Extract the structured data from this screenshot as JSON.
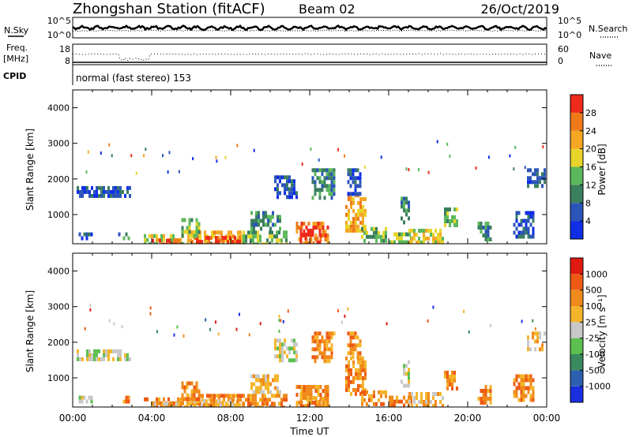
{
  "header": {
    "station": "Zhongshan Station (fitACF)",
    "beam": "Beam 02",
    "date": "26/Oct/2019"
  },
  "noise_panel": {
    "left_label": "N.Sky",
    "left_ticks": [
      "10^5",
      "10^0"
    ],
    "right_label": "N.Search",
    "right_ticks": [
      "10^5",
      "10^0"
    ]
  },
  "freq_panel": {
    "left_label_1": "Freq.",
    "left_label_2": "[MHz]",
    "left_ticks": [
      "18",
      "8"
    ],
    "right_label": "Nave",
    "right_ticks": [
      "60",
      "0"
    ],
    "cpid_label": "CPID",
    "cpid_text": "normal (fast stereo) 153"
  },
  "chart_data": [
    {
      "type": "heatmap",
      "name": "power",
      "ylabel": "Slant Range [km]",
      "yticks": [
        "4000",
        "3000",
        "2000",
        "1000"
      ],
      "ylim": [
        180,
        4500
      ],
      "colorbar": {
        "label": "Power [dB]",
        "ticks": [
          "28",
          "24",
          "20",
          "16",
          "12",
          "8",
          "4"
        ],
        "colors": [
          "#0f2ee6",
          "#2b55b8",
          "#3a7f5e",
          "#5cb85c",
          "#e8d42a",
          "#f5a623",
          "#f07a1a",
          "#ee2a1a"
        ]
      },
      "regions": [
        {
          "t": [
            0.2,
            2.9
          ],
          "r": [
            1500,
            1800
          ],
          "level": 1
        },
        {
          "t": [
            0.3,
            1.0
          ],
          "r": [
            300,
            500
          ],
          "level": 1
        },
        {
          "t": [
            2.3,
            2.9
          ],
          "r": [
            280,
            500
          ],
          "level": 2
        },
        {
          "t": [
            3.6,
            5.8
          ],
          "r": [
            200,
            450
          ],
          "level": 4
        },
        {
          "t": [
            4.0,
            5.5
          ],
          "r": [
            200,
            320
          ],
          "level": 7
        },
        {
          "t": [
            5.8,
            8.6
          ],
          "r": [
            200,
            550
          ],
          "level": 5
        },
        {
          "t": [
            6.0,
            8.5
          ],
          "r": [
            200,
            400
          ],
          "level": 7
        },
        {
          "t": [
            5.5,
            6.4
          ],
          "r": [
            400,
            900
          ],
          "level": 3
        },
        {
          "t": [
            8.6,
            10.8
          ],
          "r": [
            200,
            550
          ],
          "level": 3
        },
        {
          "t": [
            9.0,
            10.5
          ],
          "r": [
            600,
            1100
          ],
          "level": 2
        },
        {
          "t": [
            10.2,
            11.3
          ],
          "r": [
            1500,
            2100
          ],
          "level": 1
        },
        {
          "t": [
            11.3,
            12.9
          ],
          "r": [
            200,
            800
          ],
          "level": 6
        },
        {
          "t": [
            11.5,
            12.5
          ],
          "r": [
            250,
            600
          ],
          "level": 7
        },
        {
          "t": [
            12.1,
            13.3
          ],
          "r": [
            1500,
            2300
          ],
          "level": 2
        },
        {
          "t": [
            13.8,
            14.8
          ],
          "r": [
            600,
            1600
          ],
          "level": 5
        },
        {
          "t": [
            13.9,
            14.6
          ],
          "r": [
            1600,
            2300
          ],
          "level": 1
        },
        {
          "t": [
            14.6,
            15.9
          ],
          "r": [
            250,
            650
          ],
          "level": 3
        },
        {
          "t": [
            16.0,
            17.2
          ],
          "r": [
            200,
            500
          ],
          "level": 3
        },
        {
          "t": [
            16.6,
            17.0
          ],
          "r": [
            800,
            1500
          ],
          "level": 2
        },
        {
          "t": [
            17.0,
            18.8
          ],
          "r": [
            200,
            600
          ],
          "level": 4
        },
        {
          "t": [
            18.8,
            19.5
          ],
          "r": [
            700,
            1200
          ],
          "level": 3
        },
        {
          "t": [
            20.5,
            21.2
          ],
          "r": [
            250,
            800
          ],
          "level": 2
        },
        {
          "t": [
            22.3,
            23.3
          ],
          "r": [
            400,
            1100
          ],
          "level": 1
        },
        {
          "t": [
            23.0,
            23.9
          ],
          "r": [
            1800,
            2300
          ],
          "level": 1
        }
      ]
    },
    {
      "type": "heatmap",
      "name": "velocity",
      "xlabel": "Time UT",
      "ylabel": "Slant Range [km]",
      "yticks": [
        "4000",
        "3000",
        "2000",
        "1000"
      ],
      "ylim": [
        180,
        4500
      ],
      "xticks": [
        "00:00",
        "04:00",
        "08:00",
        "12:00",
        "16:00",
        "20:00",
        "00:00"
      ],
      "xlim": [
        0,
        24
      ],
      "colorbar": {
        "label": "Velocity [m s⁻¹]",
        "ticks": [
          "1000",
          "500",
          "100",
          "25",
          "-25",
          "-100",
          "-500",
          "-1000"
        ],
        "colors": [
          "#1a2fe0",
          "#2c5fb0",
          "#3a8a60",
          "#5cc050",
          "#c8c8c8",
          "#f5b52a",
          "#f08a1a",
          "#ee5a14",
          "#e01a10"
        ]
      },
      "regions": [
        {
          "t": [
            0.2,
            2.9
          ],
          "r": [
            1500,
            1800
          ],
          "level": 4
        },
        {
          "t": [
            0.3,
            1.0
          ],
          "r": [
            300,
            500
          ],
          "level": 4
        },
        {
          "t": [
            2.3,
            2.9
          ],
          "r": [
            280,
            500
          ],
          "level": 6
        },
        {
          "t": [
            3.6,
            5.8
          ],
          "r": [
            200,
            450
          ],
          "level": 6
        },
        {
          "t": [
            4.0,
            5.5
          ],
          "r": [
            200,
            320
          ],
          "level": 5
        },
        {
          "t": [
            5.8,
            8.6
          ],
          "r": [
            200,
            550
          ],
          "level": 6
        },
        {
          "t": [
            6.0,
            8.5
          ],
          "r": [
            200,
            400
          ],
          "level": 5
        },
        {
          "t": [
            5.5,
            6.4
          ],
          "r": [
            400,
            900
          ],
          "level": 6
        },
        {
          "t": [
            8.6,
            10.8
          ],
          "r": [
            200,
            550
          ],
          "level": 6
        },
        {
          "t": [
            9.0,
            10.5
          ],
          "r": [
            600,
            1100
          ],
          "level": 5
        },
        {
          "t": [
            10.2,
            11.3
          ],
          "r": [
            1500,
            2100
          ],
          "level": 4
        },
        {
          "t": [
            11.3,
            12.9
          ],
          "r": [
            200,
            800
          ],
          "level": 6
        },
        {
          "t": [
            11.5,
            12.5
          ],
          "r": [
            250,
            600
          ],
          "level": 6
        },
        {
          "t": [
            12.1,
            13.3
          ],
          "r": [
            1500,
            2300
          ],
          "level": 6
        },
        {
          "t": [
            13.8,
            14.8
          ],
          "r": [
            600,
            1600
          ],
          "level": 6
        },
        {
          "t": [
            13.9,
            14.6
          ],
          "r": [
            1600,
            2300
          ],
          "level": 6
        },
        {
          "t": [
            14.6,
            15.9
          ],
          "r": [
            250,
            650
          ],
          "level": 6
        },
        {
          "t": [
            16.0,
            17.2
          ],
          "r": [
            200,
            500
          ],
          "level": 6
        },
        {
          "t": [
            16.6,
            17.0
          ],
          "r": [
            800,
            1500
          ],
          "level": 4
        },
        {
          "t": [
            17.0,
            18.8
          ],
          "r": [
            200,
            600
          ],
          "level": 5
        },
        {
          "t": [
            18.8,
            19.5
          ],
          "r": [
            700,
            1200
          ],
          "level": 6
        },
        {
          "t": [
            20.5,
            21.2
          ],
          "r": [
            250,
            800
          ],
          "level": 6
        },
        {
          "t": [
            22.3,
            23.3
          ],
          "r": [
            400,
            1100
          ],
          "level": 6
        },
        {
          "t": [
            23.0,
            23.9
          ],
          "r": [
            1800,
            2300
          ],
          "level": 5
        }
      ]
    }
  ]
}
